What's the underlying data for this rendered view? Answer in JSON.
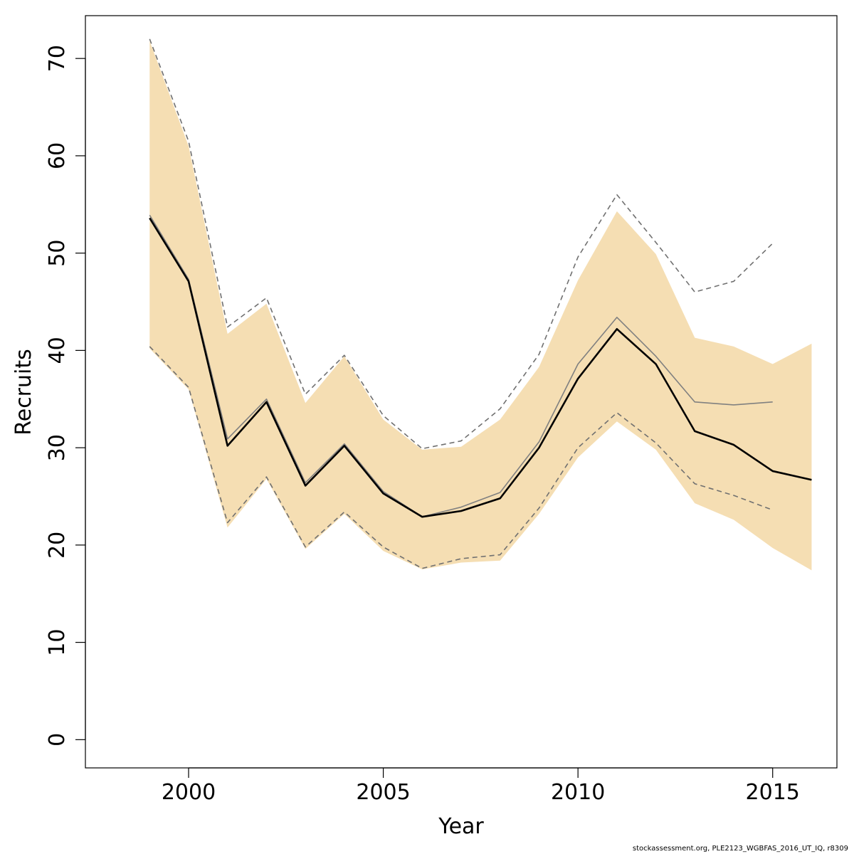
{
  "chart_data": {
    "type": "line",
    "xlabel": "Year",
    "ylabel": "Recruits",
    "xlim": [
      1997.35,
      2016.65
    ],
    "ylim": [
      -2.9,
      74.4
    ],
    "x_ticks": [
      2000,
      2005,
      2010,
      2015
    ],
    "y_ticks": [
      0,
      10,
      20,
      30,
      40,
      50,
      60,
      70
    ],
    "grid": false,
    "legend": "none",
    "colors": {
      "band": "#f5deb3",
      "current": "#000000",
      "previous": "#808080",
      "previous_ci": "#707070"
    },
    "band": {
      "x": [
        1999,
        2000,
        2001,
        2002,
        2003,
        2004,
        2005,
        2006,
        2007,
        2008,
        2009,
        2010,
        2011,
        2012,
        2013,
        2014,
        2015,
        2016
      ],
      "lower": [
        40.2,
        36.0,
        21.8,
        26.8,
        19.6,
        23.2,
        19.4,
        17.5,
        18.2,
        18.4,
        23.2,
        29.0,
        32.7,
        29.8,
        24.3,
        22.6,
        19.7,
        17.4
      ],
      "upper": [
        71.8,
        61.0,
        41.7,
        44.8,
        34.6,
        39.4,
        32.9,
        29.8,
        30.1,
        32.9,
        38.3,
        47.2,
        54.3,
        49.9,
        41.3,
        40.4,
        38.6,
        40.7
      ]
    },
    "series": [
      {
        "x": [
          1999,
          2000,
          2001,
          2002,
          2003,
          2004,
          2005,
          2006,
          2007,
          2008,
          2009,
          2010,
          2011,
          2012,
          2013,
          2014,
          2015
        ],
        "values": [
          53.9,
          47.3,
          30.9,
          35.0,
          26.4,
          30.4,
          25.5,
          22.9,
          23.9,
          25.4,
          30.6,
          38.6,
          43.4,
          39.4,
          34.7,
          34.4,
          34.7
        ],
        "style": "previous-estimate"
      },
      {
        "x": [
          1999,
          2000,
          2001,
          2002,
          2003,
          2004,
          2005,
          2006,
          2007,
          2008,
          2009,
          2010,
          2011,
          2012,
          2013,
          2014,
          2015
        ],
        "values": [
          72.0,
          61.5,
          42.4,
          45.4,
          35.5,
          39.5,
          33.3,
          29.9,
          30.7,
          34.0,
          39.6,
          49.6,
          56.0,
          51.1,
          46.0,
          47.1,
          51.0
        ],
        "style": "previous-upper"
      },
      {
        "x": [
          1999,
          2000,
          2001,
          2002,
          2003,
          2004,
          2005,
          2006,
          2007,
          2008,
          2009,
          2010,
          2011,
          2012,
          2013,
          2014,
          2015
        ],
        "values": [
          40.4,
          36.2,
          22.3,
          27.0,
          19.8,
          23.4,
          19.8,
          17.6,
          18.6,
          19.0,
          23.8,
          30.0,
          33.6,
          30.5,
          26.3,
          25.1,
          23.6
        ],
        "style": "previous-lower"
      },
      {
        "x": [
          1999,
          2000,
          2001,
          2002,
          2003,
          2004,
          2005,
          2006,
          2007,
          2008,
          2009,
          2010,
          2011,
          2012,
          2013,
          2014,
          2015,
          2016
        ],
        "values": [
          53.6,
          47.1,
          30.2,
          34.7,
          26.1,
          30.2,
          25.3,
          22.9,
          23.5,
          24.8,
          30.0,
          37.1,
          42.2,
          38.6,
          31.7,
          30.3,
          27.6,
          26.7
        ],
        "style": "current-estimate"
      }
    ]
  },
  "footer": "stockassessment.org, PLE2123_WGBFAS_2016_UT_IQ, r8309"
}
